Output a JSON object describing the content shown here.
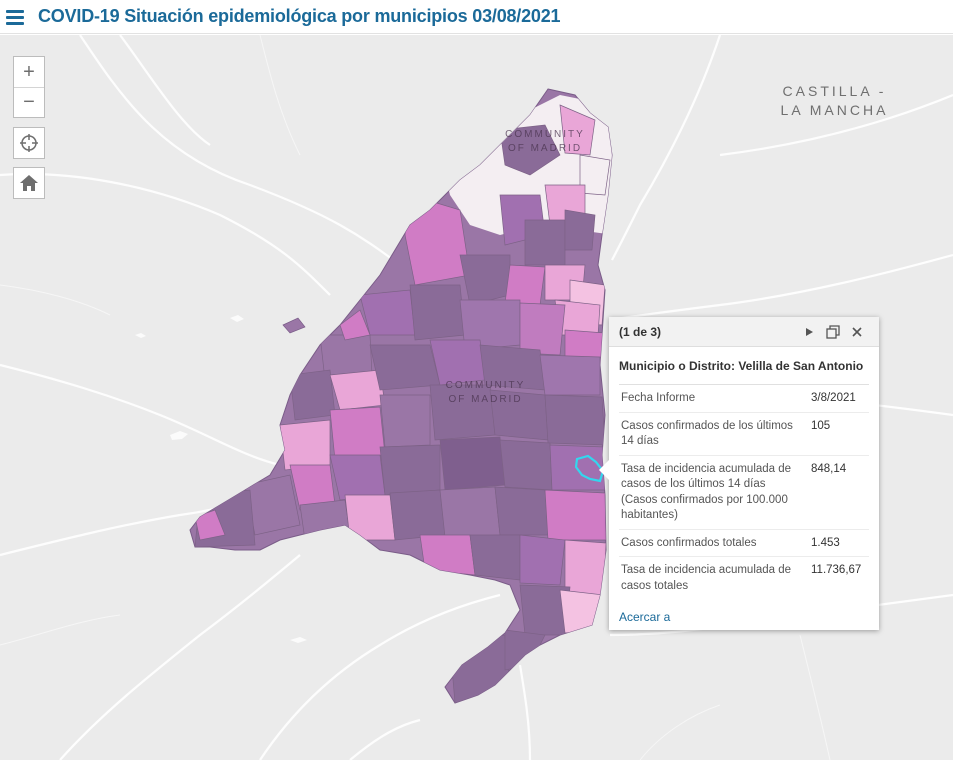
{
  "header": {
    "menu_icon": "hamburger-menu-icon",
    "title": "COVID-19 Situación epidemiológica por municipios 03/08/2021"
  },
  "map": {
    "labels": {
      "castilla": "CASTILLA -\nLA MANCHA",
      "community_top": "COMMUNITY\nOF MADRID",
      "community_center": "COMMUNITY\nOF MADRID"
    },
    "colors": {
      "background": "#ebebeb",
      "region_dark": "#8a6b98",
      "region_medium": "#a170b0",
      "region_pink": "#d07cc5",
      "region_light_pink": "#e9a6d7",
      "region_pale": "#f4eef2",
      "highlight": "#33d6ee"
    }
  },
  "controls": {
    "zoom_in": "+",
    "zoom_out": "−",
    "locate_icon": "crosshair-locate-icon",
    "home_icon": "home-icon"
  },
  "popup": {
    "count": "(1 de 3)",
    "next_icon": "play-next-icon",
    "dock_icon": "dock-window-icon",
    "close_icon": "close-icon",
    "title": "Municipio o Distrito: Velilla de San Antonio",
    "rows": [
      {
        "label": "Fecha Informe",
        "value": "3/8/2021"
      },
      {
        "label": "Casos confirmados de los últimos 14 días",
        "value": "105"
      },
      {
        "label": "Tasa de incidencia acumulada de casos de los últimos 14 días (Casos confirmados por 100.000 habitantes)",
        "value": "848,14"
      },
      {
        "label": "Casos confirmados totales",
        "value": "1.453"
      },
      {
        "label": "Tasa de incidencia acumulada de casos totales",
        "value": "11.736,67"
      }
    ],
    "link": "Acercar a"
  }
}
